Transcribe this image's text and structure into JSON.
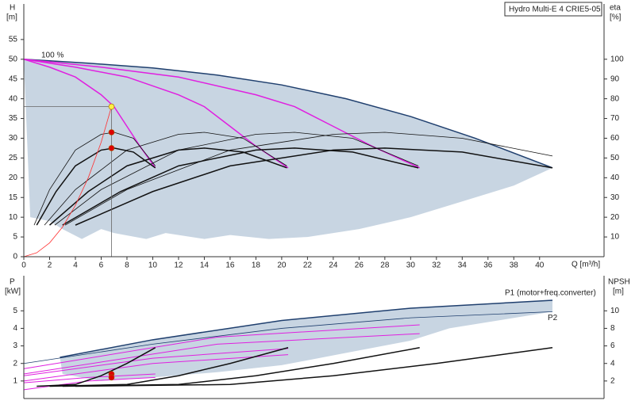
{
  "chart_data": [
    {
      "type": "line",
      "title": "Hydro Multi-E 4 CRIE5-05",
      "y_label": "H",
      "y_unit": "[m]",
      "y2_label": "eta",
      "y2_unit": "[%]",
      "x_label": "Q [m³/h]",
      "annotation": "100 %",
      "xlim": [
        0,
        45
      ],
      "ylim": [
        0,
        64
      ],
      "y2lim": [
        0,
        128
      ],
      "xticks": [
        0,
        2,
        4,
        6,
        8,
        10,
        12,
        14,
        16,
        18,
        20,
        22,
        24,
        26,
        28,
        30,
        32,
        34,
        36,
        38,
        40
      ],
      "yticks": [
        0,
        5,
        10,
        15,
        20,
        25,
        30,
        35,
        40,
        45,
        50,
        55
      ],
      "y2ticks": [
        10,
        20,
        30,
        40,
        50,
        60,
        70,
        80,
        90,
        100
      ],
      "area": {
        "color": "#c8d5e2",
        "x": [
          0,
          5,
          10,
          15,
          20,
          25,
          30,
          35,
          41,
          38,
          34,
          30,
          26,
          22,
          19,
          16,
          14,
          11,
          9.5,
          7,
          6,
          4.5,
          3,
          2,
          0.5
        ],
        "values": [
          50,
          49,
          47.8,
          46,
          43.5,
          40,
          35.5,
          30,
          22.5,
          18,
          14,
          10,
          7,
          5,
          4.5,
          5.5,
          4.5,
          6,
          4.5,
          6,
          7,
          4.5,
          7,
          9,
          10
        ]
      },
      "series": [
        {
          "color": "#1f3f6e",
          "width": 1.5,
          "x": [
            0,
            5,
            10,
            15,
            20,
            25,
            30,
            35,
            41
          ],
          "values": [
            50,
            49,
            47.8,
            46,
            43.5,
            40,
            35.5,
            30,
            22.5
          ]
        },
        {
          "color": "#e020e0",
          "width": 1.5,
          "x": [
            0,
            2,
            4,
            6,
            7,
            8,
            9,
            10.2
          ],
          "values": [
            50,
            48,
            45.5,
            41,
            38,
            33,
            28,
            22.5
          ]
        },
        {
          "color": "#e020e0",
          "width": 1.5,
          "x": [
            0,
            4,
            8,
            12,
            14,
            16,
            18,
            20.5
          ],
          "values": [
            50,
            48,
            45.5,
            41,
            38,
            33,
            28,
            22.5
          ]
        },
        {
          "color": "#e020e0",
          "width": 1.5,
          "x": [
            0,
            6,
            12,
            18,
            21,
            24,
            27,
            30.7
          ],
          "values": [
            50,
            48,
            45.5,
            41,
            38,
            33,
            28,
            22.5
          ]
        },
        {
          "color": "#111111",
          "width": 0.8,
          "axis": "y2",
          "x": [
            0.8,
            2,
            4,
            6,
            7,
            8.5,
            10.2
          ],
          "values": [
            16,
            34,
            54,
            62,
            63,
            60,
            46
          ]
        },
        {
          "color": "#111111",
          "width": 0.8,
          "axis": "y2",
          "x": [
            1.6,
            4,
            8,
            12,
            14,
            17,
            20.4
          ],
          "values": [
            16,
            34,
            54,
            62,
            63,
            60,
            46
          ]
        },
        {
          "color": "#111111",
          "width": 0.8,
          "axis": "y2",
          "x": [
            2.4,
            6,
            12,
            18,
            21,
            25.5,
            30.6
          ],
          "values": [
            16,
            34,
            54,
            62,
            63,
            60,
            46
          ]
        },
        {
          "color": "#111111",
          "width": 0.8,
          "axis": "y2",
          "x": [
            3.2,
            8,
            16,
            24,
            28,
            34,
            41
          ],
          "values": [
            16,
            34,
            54,
            62,
            63,
            60,
            51
          ]
        },
        {
          "color": "#111111",
          "width": 1.5,
          "axis": "y2",
          "x": [
            1,
            2.5,
            4,
            6,
            7,
            8.5,
            10.2
          ],
          "values": [
            16,
            33,
            46,
            54,
            55,
            53,
            45
          ]
        },
        {
          "color": "#111111",
          "width": 1.5,
          "axis": "y2",
          "x": [
            2,
            5,
            8,
            12,
            14,
            17,
            20.4
          ],
          "values": [
            16,
            33,
            46,
            54,
            55,
            53,
            45
          ]
        },
        {
          "color": "#111111",
          "width": 1.5,
          "axis": "y2",
          "x": [
            3,
            7.5,
            12,
            18,
            21,
            25.5,
            30.6
          ],
          "values": [
            16,
            33,
            46,
            54,
            55,
            53,
            45
          ]
        },
        {
          "color": "#111111",
          "width": 1.5,
          "axis": "y2",
          "x": [
            4,
            10,
            16,
            24,
            28,
            34,
            41
          ],
          "values": [
            16,
            33,
            46,
            54,
            55,
            53,
            45
          ]
        },
        {
          "color": "#ff3333",
          "width": 0.8,
          "x": [
            0,
            1,
            2,
            3,
            4,
            5,
            6,
            6.8
          ],
          "values": [
            0,
            1,
            3.5,
            7.5,
            13,
            20,
            29,
            38
          ]
        },
        {
          "color": "#666666",
          "width": 0.8,
          "x": [
            0,
            6.8,
            6.8
          ],
          "values": [
            38,
            38,
            0
          ]
        },
        {
          "color": "#dd0000",
          "marker": true,
          "x": [
            6.8,
            6.8
          ],
          "values": [
            31.5,
            27.5
          ]
        },
        {
          "color": "#ffee44",
          "marker": true,
          "x": [
            6.8
          ],
          "values": [
            38
          ]
        }
      ]
    },
    {
      "type": "line",
      "y_label": "P",
      "y_unit": "[kW]",
      "y2_label": "NPSH",
      "y2_unit": "[m]",
      "xlim": [
        0,
        45
      ],
      "ylim": [
        0,
        7
      ],
      "y2lim": [
        0,
        14
      ],
      "yticks": [
        1,
        2,
        3,
        4,
        5
      ],
      "y2ticks": [
        2,
        4,
        6,
        8,
        10
      ],
      "area": {
        "color": "#c8d5e2",
        "x": [
          2.8,
          10,
          20,
          30,
          41,
          41,
          33,
          30,
          25,
          20,
          15,
          10,
          6,
          3
        ],
        "values": [
          2.35,
          3.35,
          4.45,
          5.15,
          5.6,
          4.95,
          4.0,
          3.3,
          2.6,
          1.9,
          1.5,
          1.2,
          1.0,
          1.4
        ]
      },
      "series": [
        {
          "name": "P1 (motor+freq.converter)",
          "color": "#1f3f6e",
          "width": 1.5,
          "x": [
            2.8,
            10,
            20,
            30,
            41
          ],
          "values": [
            2.35,
            3.35,
            4.45,
            5.15,
            5.6
          ]
        },
        {
          "name": "P2",
          "color": "#1f3f6e",
          "width": 0.8,
          "x": [
            0,
            10,
            20,
            30,
            41
          ],
          "values": [
            2.0,
            3.1,
            4.0,
            4.6,
            4.95
          ]
        },
        {
          "color": "#e020e0",
          "width": 1,
          "x": [
            0,
            5,
            10.2
          ],
          "values": [
            0.9,
            1.2,
            1.4
          ]
        },
        {
          "color": "#e020e0",
          "width": 1,
          "x": [
            0,
            5,
            10.2
          ],
          "values": [
            0.5,
            1.0,
            1.2
          ]
        },
        {
          "color": "#e020e0",
          "width": 1,
          "x": [
            0,
            10,
            20.5
          ],
          "values": [
            1.3,
            2.3,
            2.85
          ]
        },
        {
          "color": "#e020e0",
          "width": 1,
          "x": [
            0,
            10,
            20.5
          ],
          "values": [
            1.0,
            2.0,
            2.5
          ]
        },
        {
          "color": "#e020e0",
          "width": 1,
          "x": [
            0,
            15,
            30.7
          ],
          "values": [
            1.7,
            3.5,
            4.2
          ]
        },
        {
          "color": "#e020e0",
          "width": 1,
          "x": [
            0,
            15,
            30.7
          ],
          "values": [
            1.4,
            3.1,
            3.7
          ]
        },
        {
          "color": "#111111",
          "width": 1.5,
          "axis": "y2",
          "x": [
            1,
            4,
            6,
            8,
            10.2
          ],
          "values": [
            1.4,
            1.6,
            2.6,
            4.0,
            5.8
          ]
        },
        {
          "color": "#111111",
          "width": 1.5,
          "axis": "y2",
          "x": [
            2,
            8,
            12,
            16,
            20.5
          ],
          "values": [
            1.4,
            1.6,
            2.6,
            4.0,
            5.8
          ]
        },
        {
          "color": "#111111",
          "width": 1.5,
          "axis": "y2",
          "x": [
            3,
            12,
            18,
            24,
            30.7
          ],
          "values": [
            1.4,
            1.6,
            2.6,
            4.0,
            5.8
          ]
        },
        {
          "color": "#111111",
          "width": 1.5,
          "axis": "y2",
          "x": [
            4,
            16,
            24,
            32,
            41
          ],
          "values": [
            1.4,
            1.6,
            2.6,
            4.0,
            5.8
          ]
        },
        {
          "color": "#dd0000",
          "marker": true,
          "x": [
            6.8,
            6.8
          ],
          "values": [
            1.4,
            1.2
          ]
        }
      ]
    }
  ]
}
